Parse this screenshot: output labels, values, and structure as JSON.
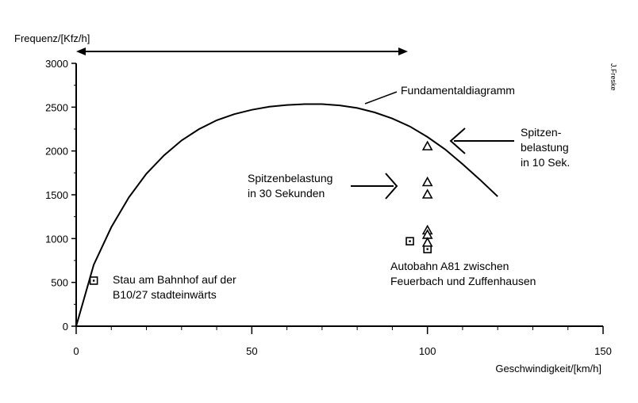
{
  "chart_data": {
    "type": "scatter",
    "ylabel": "Frequenz/[Kfz/h]",
    "xlabel": "Geschwindigkeit/[km/h]",
    "side_label": "J.Freske",
    "xlim": [
      0,
      150
    ],
    "ylim": [
      0,
      3000
    ],
    "xticks": [
      0,
      50,
      100,
      150
    ],
    "yticks": [
      0,
      500,
      1000,
      1500,
      2000,
      2500,
      3000
    ],
    "grid": false,
    "curve": {
      "label": "Fundamentaldiagramm",
      "x": [
        0,
        5,
        10,
        15,
        20,
        25,
        30,
        35,
        40,
        45,
        50,
        55,
        60,
        65,
        70,
        75,
        80,
        85,
        90,
        95,
        100,
        105,
        110,
        115,
        120
      ],
      "y": [
        0,
        700,
        1130,
        1470,
        1740,
        1950,
        2120,
        2250,
        2350,
        2420,
        2470,
        2505,
        2525,
        2535,
        2535,
        2520,
        2490,
        2440,
        2370,
        2280,
        2160,
        2020,
        1850,
        1670,
        1480
      ]
    },
    "series": [
      {
        "marker": "square",
        "x": [
          5,
          95,
          100
        ],
        "y": [
          520,
          970,
          880
        ]
      },
      {
        "marker": "triangle",
        "x": [
          100,
          100,
          100,
          100,
          100,
          100
        ],
        "y": [
          2050,
          1640,
          1500,
          1090,
          1040,
          950
        ]
      }
    ],
    "annotations": {
      "stau": [
        "Stau am Bahnhof auf der",
        "B10/27 stadteinwärts"
      ],
      "spitze30": [
        "Spitzenbelastung",
        "in 30 Sekunden"
      ],
      "spitze10": [
        "Spitzen-",
        "belastung",
        "in 10 Sek."
      ],
      "autobahn": [
        "Autobahn A81 zwischen",
        "Feuerbach und Zuffenhausen"
      ]
    }
  }
}
